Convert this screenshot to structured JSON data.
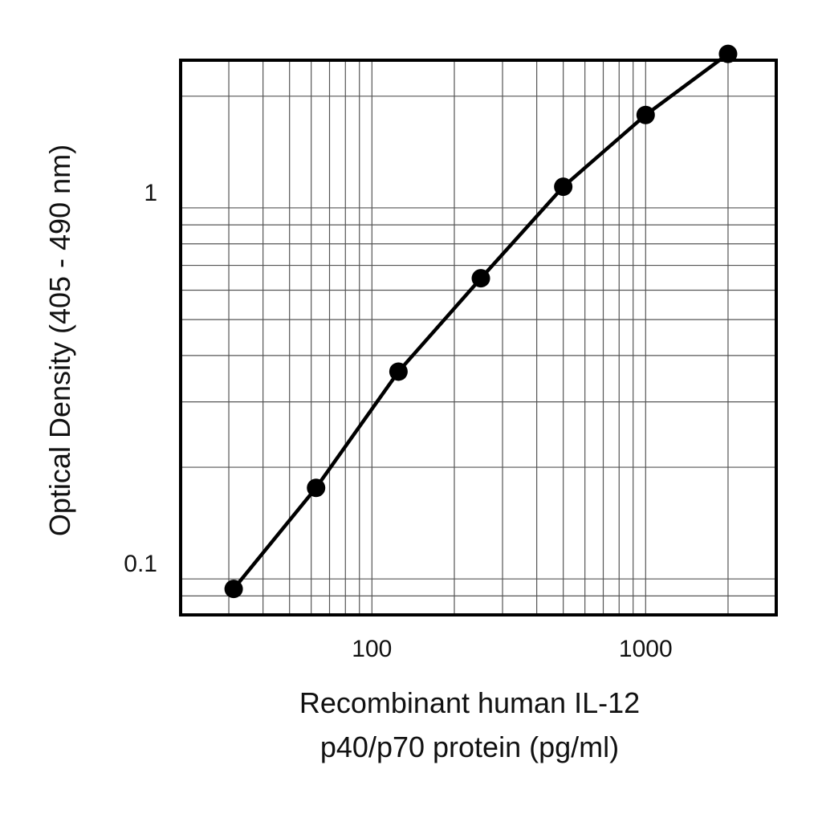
{
  "chart_data": {
    "type": "line",
    "xscale": "log",
    "yscale": "log",
    "xlim": [
      20,
      3000
    ],
    "ylim": [
      0.08,
      2.5
    ],
    "xticks": [
      {
        "value": 100,
        "label": "100"
      },
      {
        "value": 1000,
        "label": "1000"
      }
    ],
    "yticks": [
      {
        "value": 0.1,
        "label": "0.1"
      },
      {
        "value": 1,
        "label": "1"
      }
    ],
    "xgrid": [
      30,
      40,
      50,
      60,
      70,
      80,
      90,
      100,
      200,
      300,
      400,
      500,
      600,
      700,
      800,
      900,
      1000,
      2000
    ],
    "ygrid": [
      0.09,
      0.1,
      0.2,
      0.3,
      0.4,
      0.5,
      0.6,
      0.7,
      0.8,
      0.9,
      1,
      2
    ],
    "grid": true,
    "xlabel": [
      "Recombinant human IL-12",
      "p40/p70 protein (pg/ml)"
    ],
    "ylabel": "Optical Density (405 - 490 nm)",
    "series": [
      {
        "x": [
          31.25,
          62.5,
          125,
          250,
          500,
          1000,
          2000
        ],
        "y": [
          0.094,
          0.176,
          0.362,
          0.646,
          1.14,
          1.78,
          2.6
        ]
      }
    ],
    "colors": {
      "line": "#000000",
      "marker": "#000000",
      "grid": "#555555",
      "frame": "#000000"
    }
  }
}
